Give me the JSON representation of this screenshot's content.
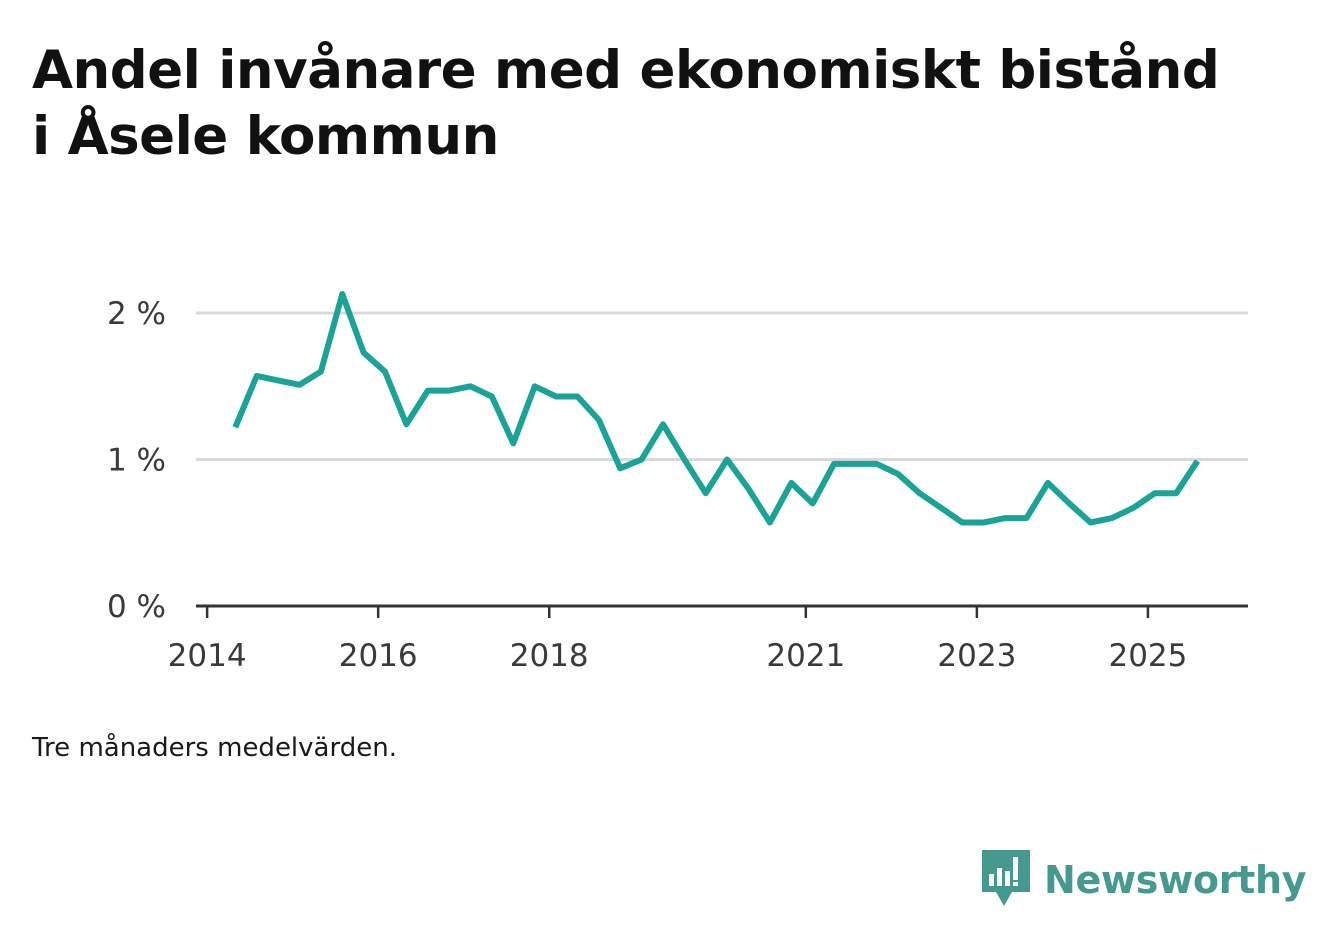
{
  "title": "Andel invånare med ekonomiskt bistånd i Åsele kommun",
  "caption": "Tre månaders medelvärden.",
  "brand": {
    "name": "Newsworthy",
    "icon": "newsworthy-bar-chart-logo-icon"
  },
  "colors": {
    "line": "#1aa396",
    "grid": "#d9d9d9",
    "axis": "#333333",
    "brand": "#45998f"
  },
  "chart_data": {
    "type": "line",
    "title": "Andel invånare med ekonomiskt bistånd i Åsele kommun",
    "xlabel": "",
    "ylabel": "",
    "xlim": [
      2013.87,
      2026.17
    ],
    "ylim": [
      0,
      2
    ],
    "x_ticks": [
      2014,
      2016,
      2018,
      2021,
      2023,
      2025
    ],
    "x_tick_labels": [
      "2014",
      "2016",
      "2018",
      "2021",
      "2023",
      "2025"
    ],
    "y_ticks": [
      0,
      1,
      2
    ],
    "y_tick_labels": [
      "0 %",
      "1 %",
      "2 %"
    ],
    "grid": true,
    "series": [
      {
        "name": "Andel invånare med ekonomiskt bistånd",
        "x": [
          2014.33,
          2014.58,
          2014.83,
          2015.08,
          2015.33,
          2015.58,
          2015.83,
          2016.08,
          2016.33,
          2016.58,
          2016.83,
          2017.08,
          2017.33,
          2017.58,
          2017.83,
          2018.08,
          2018.33,
          2018.58,
          2018.83,
          2019.08,
          2019.33,
          2019.58,
          2019.83,
          2020.08,
          2020.33,
          2020.58,
          2020.83,
          2021.08,
          2021.33,
          2021.58,
          2021.83,
          2022.08,
          2022.33,
          2022.58,
          2022.83,
          2023.08,
          2023.33,
          2023.58,
          2023.83,
          2024.08,
          2024.33,
          2024.58,
          2024.83,
          2025.08,
          2025.33,
          2025.58
        ],
        "values": [
          1.22,
          1.57,
          1.54,
          1.51,
          1.6,
          2.13,
          1.73,
          1.6,
          1.24,
          1.47,
          1.47,
          1.5,
          1.43,
          1.11,
          1.5,
          1.43,
          1.43,
          1.27,
          0.94,
          1.0,
          1.24,
          1.0,
          0.77,
          1.0,
          0.8,
          0.57,
          0.84,
          0.7,
          0.97,
          0.97,
          0.97,
          0.9,
          0.77,
          0.67,
          0.57,
          0.57,
          0.6,
          0.6,
          0.84,
          0.7,
          0.57,
          0.6,
          0.67,
          0.77,
          0.77,
          0.99
        ]
      }
    ]
  }
}
